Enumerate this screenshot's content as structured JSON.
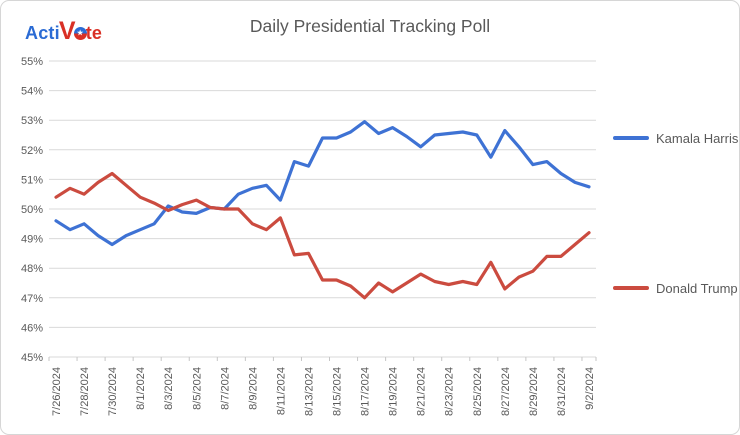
{
  "header": {
    "logo": {
      "text_acti": "Acti",
      "text_v": "V",
      "text_te": "te",
      "ball_star": "★",
      "blue": "#2b6bd4",
      "red": "#d93025"
    },
    "title": "Daily Presidential Tracking Poll"
  },
  "chart_data": {
    "type": "line",
    "title": "Daily Presidential Tracking Poll",
    "x": [
      "7/26/2024",
      "7/27/2024",
      "7/28/2024",
      "7/29/2024",
      "7/30/2024",
      "7/31/2024",
      "8/1/2024",
      "8/2/2024",
      "8/3/2024",
      "8/4/2024",
      "8/5/2024",
      "8/6/2024",
      "8/7/2024",
      "8/8/2024",
      "8/9/2024",
      "8/10/2024",
      "8/11/2024",
      "8/12/2024",
      "8/13/2024",
      "8/14/2024",
      "8/15/2024",
      "8/16/2024",
      "8/17/2024",
      "8/18/2024",
      "8/19/2024",
      "8/20/2024",
      "8/21/2024",
      "8/22/2024",
      "8/23/2024",
      "8/24/2024",
      "8/25/2024",
      "8/26/2024",
      "8/27/2024",
      "8/28/2024",
      "8/29/2024",
      "8/30/2024",
      "8/31/2024",
      "9/1/2024",
      "9/2/2024"
    ],
    "x_tick_every": 2,
    "ylim": [
      45,
      55
    ],
    "y_tick_step": 1,
    "y_tick_suffix": "%",
    "grid": true,
    "legend_position": "right",
    "axis_color": "#595959",
    "gridline_color": "#d9d9d9",
    "tick_color": "#c6c6c6",
    "series": [
      {
        "name": "Kamala Harris",
        "color": "#3e72d4",
        "values": [
          49.6,
          49.3,
          49.5,
          49.1,
          48.8,
          49.1,
          49.3,
          49.5,
          50.1,
          49.9,
          49.85,
          50.05,
          50.0,
          50.5,
          50.7,
          50.8,
          50.3,
          51.6,
          51.45,
          52.4,
          52.4,
          52.6,
          52.95,
          52.55,
          52.75,
          52.45,
          52.1,
          52.5,
          52.55,
          52.6,
          52.5,
          51.75,
          52.65,
          52.1,
          51.5,
          51.6,
          51.2,
          50.9,
          50.75
        ]
      },
      {
        "name": "Donald Trump",
        "color": "#cb4b3f",
        "values": [
          50.4,
          50.7,
          50.5,
          50.9,
          51.2,
          50.8,
          50.4,
          50.2,
          49.95,
          50.15,
          50.3,
          50.05,
          50.0,
          50.0,
          49.5,
          49.3,
          49.7,
          48.45,
          48.5,
          47.6,
          47.6,
          47.4,
          47.0,
          47.5,
          47.2,
          47.5,
          47.8,
          47.55,
          47.45,
          47.55,
          47.45,
          48.2,
          47.3,
          47.7,
          47.9,
          48.4,
          48.4,
          48.8,
          49.2
        ]
      }
    ]
  }
}
